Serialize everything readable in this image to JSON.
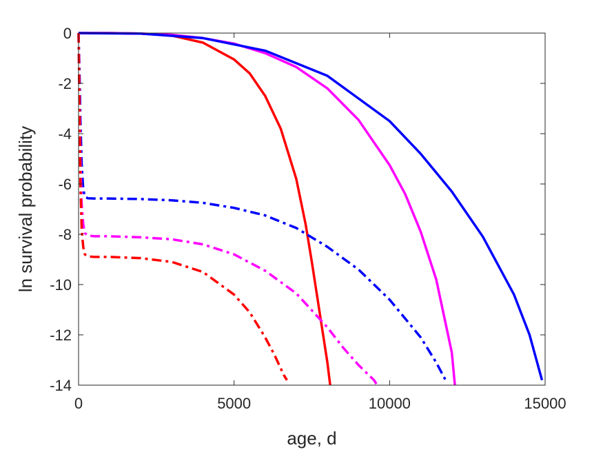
{
  "chart_data": {
    "type": "line",
    "xlabel": "age, d",
    "ylabel": "ln survival probability",
    "xlim": [
      0,
      15000
    ],
    "ylim": [
      -14,
      0
    ],
    "xticks": [
      0,
      5000,
      10000,
      15000
    ],
    "yticks": [
      0,
      -2,
      -4,
      -6,
      -8,
      -10,
      -12,
      -14
    ],
    "xtick_labels": [
      "0",
      "5000",
      "10000",
      "15000"
    ],
    "ytick_labels": [
      "0",
      "-2",
      "-4",
      "-6",
      "-8",
      "-10",
      "-12",
      "-14"
    ],
    "grid": false,
    "legend": "none",
    "series": [
      {
        "color": "#ff0000",
        "style": "solid",
        "x": [
          0,
          1000,
          2000,
          3000,
          4000,
          5000,
          5500,
          6000,
          6500,
          7000,
          7300,
          7500,
          7800,
          8000,
          8090
        ],
        "y": [
          0,
          0,
          -0.02,
          -0.1,
          -0.38,
          -1.05,
          -1.6,
          -2.5,
          -3.8,
          -5.8,
          -7.6,
          -9.1,
          -11.5,
          -13.1,
          -14
        ]
      },
      {
        "color": "#ff00ff",
        "style": "solid",
        "x": [
          0,
          1000,
          2000,
          3000,
          4000,
          5000,
          6000,
          7000,
          8000,
          9000,
          10000,
          10500,
          11000,
          11500,
          12000,
          12100
        ],
        "y": [
          0,
          0,
          -0.02,
          -0.07,
          -0.2,
          -0.42,
          -0.8,
          -1.35,
          -2.2,
          -3.45,
          -5.25,
          -6.4,
          -7.9,
          -9.8,
          -12.7,
          -14
        ]
      },
      {
        "color": "#0000ff",
        "style": "solid",
        "x": [
          0,
          2000,
          4000,
          6000,
          8000,
          10000,
          11000,
          12000,
          13000,
          14000,
          14500,
          14900
        ],
        "y": [
          0,
          -0.02,
          -0.2,
          -0.7,
          -1.7,
          -3.5,
          -4.8,
          -6.3,
          -8.1,
          -10.4,
          -12.0,
          -13.8
        ]
      },
      {
        "color": "#0000ff",
        "style": "dashdot",
        "x": [
          0,
          30,
          60,
          100,
          150,
          200,
          300,
          500,
          1000,
          2000,
          3000,
          4000,
          5000,
          6000,
          7000,
          8000,
          9000,
          10000,
          11000,
          11500,
          11800
        ],
        "y": [
          0,
          -1.5,
          -3.5,
          -5.2,
          -6.2,
          -6.5,
          -6.57,
          -6.58,
          -6.58,
          -6.6,
          -6.65,
          -6.75,
          -6.95,
          -7.25,
          -7.75,
          -8.5,
          -9.4,
          -10.6,
          -12.1,
          -13.1,
          -13.8
        ]
      },
      {
        "color": "#ff00ff",
        "style": "dashdot",
        "x": [
          0,
          30,
          60,
          100,
          150,
          200,
          300,
          500,
          1000,
          2000,
          3000,
          4000,
          5000,
          6000,
          7000,
          8000,
          8500,
          9000,
          9500,
          9600
        ],
        "y": [
          0,
          -2.5,
          -5.0,
          -6.8,
          -7.6,
          -7.95,
          -8.05,
          -8.08,
          -8.08,
          -8.12,
          -8.2,
          -8.4,
          -8.8,
          -9.45,
          -10.35,
          -11.7,
          -12.5,
          -13.2,
          -13.8,
          -14
        ]
      },
      {
        "color": "#ff0000",
        "style": "dashdot",
        "x": [
          0,
          30,
          60,
          100,
          150,
          200,
          300,
          500,
          1000,
          2000,
          3000,
          4000,
          5000,
          5500,
          6000,
          6300,
          6600,
          6700
        ],
        "y": [
          0,
          -3.0,
          -6.0,
          -7.8,
          -8.5,
          -8.8,
          -8.88,
          -8.9,
          -8.9,
          -8.95,
          -9.1,
          -9.5,
          -10.4,
          -11.1,
          -12.1,
          -12.8,
          -13.6,
          -13.8
        ]
      }
    ]
  }
}
